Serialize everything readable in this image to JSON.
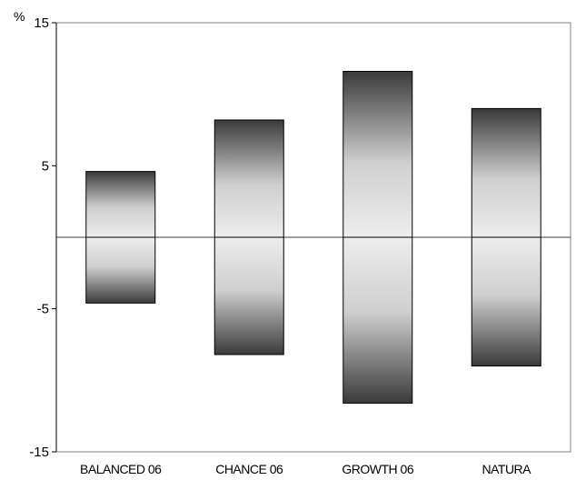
{
  "chart_data": {
    "type": "bar",
    "categories": [
      "BALANCED 06",
      "CHANCE 06",
      "GROWTH 06",
      "NATURA"
    ],
    "series": [
      {
        "values": [
          4.6,
          8.2,
          11.6,
          9.0
        ]
      },
      {
        "values": [
          -4.6,
          -8.2,
          -11.6,
          -9.0
        ]
      }
    ],
    "ylim": [
      -15,
      15
    ],
    "yticks": [
      "15",
      "5",
      "-5",
      "-15"
    ],
    "ylabel": "%",
    "xlabel": "",
    "title": "",
    "grid": false,
    "zero_line": true
  }
}
